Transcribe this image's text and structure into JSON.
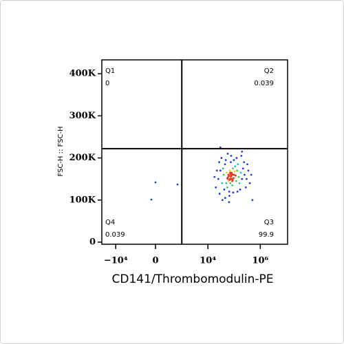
{
  "chart_data": {
    "type": "scatter",
    "xlabel": "CD141/Thrombomodulin-PE",
    "ylabel": "FSC-H :: FSC-H",
    "xscale": "biexponential",
    "xlim": [
      -50000,
      11000000
    ],
    "ylim": [
      -5000,
      433000
    ],
    "xticks": [
      {
        "value": -10000,
        "label": "−10⁴"
      },
      0,
      {
        "value": 10000,
        "label": "10⁴"
      },
      {
        "value": 1000000,
        "label": "10⁶"
      }
    ],
    "yticks": [
      0,
      {
        "value": 100000,
        "label": "100K"
      },
      {
        "value": 200000,
        "label": "200K"
      },
      {
        "value": 300000,
        "label": "300K"
      },
      {
        "value": 400000,
        "label": "400K"
      }
    ],
    "gate": {
      "x": 1000,
      "y": 222000
    },
    "quadrants": [
      {
        "name": "Q1",
        "value": 0
      },
      {
        "name": "Q2",
        "value": 0.039
      },
      {
        "name": "Q3",
        "value": 99.9
      },
      {
        "name": "Q4",
        "value": 0.039
      }
    ],
    "series": [
      {
        "x": [
          25000,
          30000,
          40000,
          50000,
          60000,
          70000,
          80000,
          90000,
          100000,
          120000,
          45000,
          55000,
          65000,
          75000,
          85000,
          110000,
          130000,
          150000,
          180000,
          200000,
          35000,
          38000,
          42000,
          48000,
          52000,
          58000,
          62000,
          68000,
          72000,
          78000,
          82000,
          88000,
          95000,
          105000,
          115000,
          140000,
          160000,
          220000,
          250000,
          300000,
          20000,
          22000,
          28000,
          33000,
          46000,
          57000,
          66000,
          77000,
          92000,
          125000,
          170000,
          240000,
          350000,
          400000,
          18000,
          27000,
          36000,
          64000,
          98000,
          135000,
          190000,
          280000,
          320000,
          450000,
          500000,
          60000,
          70000,
          75000,
          80000,
          65000,
          90000,
          55000,
          85000,
          72000,
          68000,
          0,
          -100,
          680,
          30000,
          200000
        ],
        "y": [
          150000,
          170000,
          160000,
          140000,
          155000,
          165000,
          150000,
          175000,
          160000,
          145000,
          185000,
          130000,
          120000,
          190000,
          135000,
          180000,
          170000,
          155000,
          165000,
          150000,
          140000,
          175000,
          125000,
          195000,
          165000,
          150000,
          145000,
          170000,
          140000,
          158000,
          162000,
          148000,
          152000,
          168000,
          158000,
          185000,
          140000,
          175000,
          160000,
          150000,
          130000,
          170000,
          115000,
          200000,
          105000,
          210000,
          110000,
          205000,
          118000,
          200000,
          125000,
          190000,
          170000,
          140000,
          155000,
          190000,
          100000,
          95000,
          195000,
          120000,
          205000,
          130000,
          185000,
          160000,
          100000,
          160000,
          150000,
          155000,
          165000,
          158000,
          160000,
          152000,
          145000,
          162000,
          148000,
          142000,
          101000,
          137000,
          225000,
          215000
        ]
      }
    ]
  }
}
